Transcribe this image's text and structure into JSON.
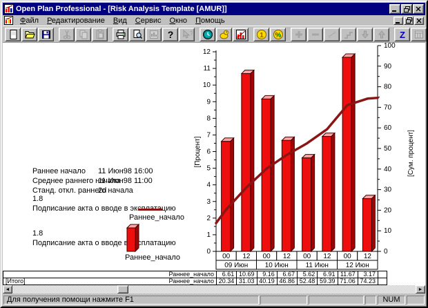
{
  "window": {
    "title": "Open Plan Professional - [Risk Analysis Template [AMUR]]"
  },
  "menu": {
    "items": [
      "Файл",
      "Редактирование",
      "Вид",
      "Сервис",
      "Окно",
      "Помощь"
    ]
  },
  "toolbar": {
    "groups": [
      [
        {
          "icon": "new-document-icon",
          "enabled": true
        },
        {
          "icon": "open-file-icon",
          "enabled": true
        },
        {
          "icon": "save-icon",
          "enabled": true
        }
      ],
      [
        {
          "icon": "cut-icon",
          "enabled": false
        },
        {
          "icon": "copy-icon",
          "enabled": false
        },
        {
          "icon": "paste-icon",
          "enabled": false
        }
      ],
      [
        {
          "icon": "print-icon",
          "enabled": true
        },
        {
          "icon": "print-preview-icon",
          "enabled": true
        },
        {
          "icon": "update-chart-icon",
          "enabled": false
        },
        {
          "icon": "help-icon",
          "enabled": true
        },
        {
          "icon": "context-help-icon",
          "enabled": false
        }
      ],
      [
        {
          "icon": "clock-icon",
          "enabled": true
        },
        {
          "icon": "duck-icon",
          "enabled": true
        },
        {
          "icon": "risk-histogram-icon",
          "enabled": true
        }
      ],
      [
        {
          "icon": "coin-icon",
          "enabled": true
        },
        {
          "icon": "percent-icon",
          "enabled": true
        }
      ],
      [
        {
          "icon": "add-icon",
          "enabled": false
        },
        {
          "icon": "remove-icon",
          "enabled": false
        },
        {
          "icon": "link-icon",
          "enabled": false
        },
        {
          "icon": "steps-icon",
          "enabled": false
        },
        {
          "icon": "down-arrow-icon",
          "enabled": false
        },
        {
          "icon": "up-arrow-icon",
          "enabled": false
        }
      ],
      [
        {
          "icon": "sort-z-icon",
          "enabled": true
        },
        {
          "icon": "calendar-icon",
          "enabled": false
        }
      ],
      [
        {
          "icon": "tile-windows-icon",
          "enabled": false
        },
        {
          "icon": "cascade-windows-icon",
          "enabled": false
        }
      ]
    ]
  },
  "stats": {
    "rows": [
      {
        "label": "Раннее начало",
        "value": "11 Июн98 16:00"
      },
      {
        "label": "Среднее раннего начала",
        "value": "11 Июн98 11:00"
      },
      {
        "label": "Станд. откл.  раннего начала",
        "value": "2d"
      }
    ]
  },
  "legend": [
    {
      "id": "1.8",
      "task": "Подписание акта о вводе в эксплатацию",
      "series": "Раннее_начало",
      "swatch": "line"
    },
    {
      "id": "1.8",
      "task": "Подписание акта о вводе в эксплатацию",
      "series": "Раннее_начало",
      "swatch": "bar"
    }
  ],
  "chart_data": {
    "type": "bar",
    "title": "",
    "categories": [
      "00",
      "12",
      "00",
      "12",
      "00",
      "12",
      "00",
      "12"
    ],
    "category_groups": [
      {
        "label": "09 Июн",
        "span": 2
      },
      {
        "label": "10 Июн",
        "span": 2
      },
      {
        "label": "11 Июн",
        "span": 2
      },
      {
        "label": "12 Июн",
        "span": 2
      }
    ],
    "series": [
      {
        "name": "Раннее_начало",
        "type": "bar",
        "axis": "left",
        "values": [
          6.61,
          10.69,
          9.16,
          6.67,
          5.62,
          6.91,
          11.67,
          3.17
        ],
        "color": "#ee0e0e",
        "top_color": "#ffa3a3",
        "side_color": "#a20404"
      },
      {
        "name": "Раннее_начало",
        "type": "cumulative-line",
        "axis": "right",
        "values": [
          20.34,
          31.03,
          40.19,
          46.86,
          52.48,
          59.39,
          71.06,
          74.23
        ],
        "edge_start": 13.73,
        "edge_end": 74.6,
        "color": "#8b1414"
      }
    ],
    "axes": {
      "left": {
        "label": "[Процент]",
        "min": 0,
        "max": 12,
        "major": 1,
        "minor": 0.5
      },
      "right": {
        "label": "[Сум. процент]",
        "min": 0,
        "max": 100,
        "major": 10,
        "minor": 5
      }
    },
    "grid": false,
    "legend_position": "left"
  },
  "table": {
    "rows": [
      {
        "group_label": "",
        "series_label": "Раннее_начало",
        "values": [
          "6.61",
          "10.69",
          "9.16",
          "6.67",
          "5.62",
          "6.91",
          "11.67",
          "3.17"
        ]
      },
      {
        "group_label": "[Итого]",
        "series_label": "Раннее_начало",
        "values": [
          "20.34",
          "31.03",
          "40.19",
          "46.86",
          "52.48",
          "59.39",
          "71.06",
          "74.23"
        ]
      }
    ]
  },
  "statusbar": {
    "message": "Для получения помощи нажмите F1",
    "num": "NUM"
  }
}
